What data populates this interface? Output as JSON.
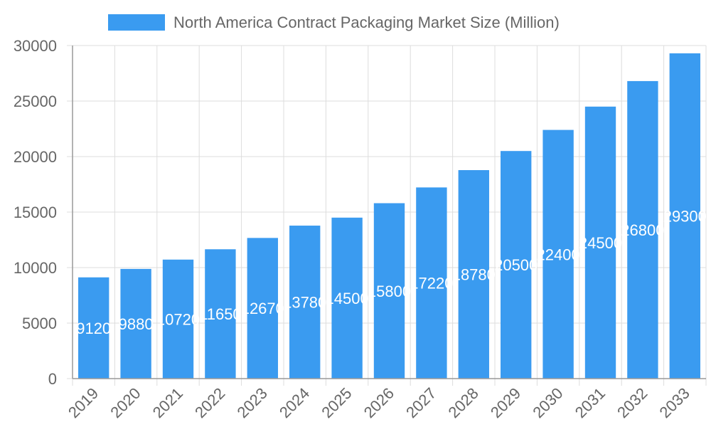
{
  "chart_data": {
    "type": "bar",
    "title": "",
    "xlabel": "",
    "ylabel": "",
    "legend": {
      "position": "top",
      "entries": [
        "North America Contract Packaging Market Size (Million)"
      ]
    },
    "categories": [
      "2019",
      "2020",
      "2021",
      "2022",
      "2023",
      "2024",
      "2025",
      "2026",
      "2027",
      "2028",
      "2029",
      "2030",
      "2031",
      "2032",
      "2033"
    ],
    "series": [
      {
        "name": "North America Contract Packaging Market Size (Million)",
        "values": [
          9120,
          9880,
          10720,
          11650,
          12670,
          13780,
          14500,
          15800,
          17220,
          18780,
          20500,
          22400,
          24500,
          26800,
          29300
        ],
        "color": "#3a9bf0"
      }
    ],
    "data_labels": [
      "9120",
      "9880",
      "10720",
      "11650",
      "12670",
      "13780",
      "14500",
      "15800",
      "17220",
      "18780",
      "20500",
      "22400",
      "24500",
      "26800",
      "29300"
    ],
    "ylim": [
      0,
      30000
    ],
    "yticks": [
      "0",
      "5000",
      "10000",
      "15000",
      "20000",
      "25000",
      "30000"
    ],
    "grid": true
  }
}
